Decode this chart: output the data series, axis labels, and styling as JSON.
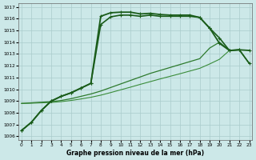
{
  "title": "Graphe pression niveau de la mer (hPa)",
  "bg_color": "#cce8e8",
  "grid_color": "#aacccc",
  "dark": "#1a5c1a",
  "mid": "#2d7a2d",
  "light": "#3a8c3a",
  "xmin": 0,
  "xmax": 23,
  "ymin": 1006,
  "ymax": 1017,
  "yticks": [
    1006,
    1007,
    1008,
    1009,
    1010,
    1011,
    1012,
    1013,
    1014,
    1015,
    1016,
    1017
  ],
  "xticks": [
    0,
    1,
    2,
    3,
    4,
    5,
    6,
    7,
    8,
    9,
    10,
    11,
    12,
    13,
    14,
    15,
    16,
    17,
    18,
    19,
    20,
    21,
    22,
    23
  ],
  "line1_x": [
    0,
    1,
    2,
    3,
    4,
    5,
    6,
    7,
    8,
    9,
    10,
    11,
    12,
    13,
    14,
    15,
    16,
    17,
    18,
    19,
    20,
    21,
    22,
    23
  ],
  "line1_y": [
    1006.5,
    1007.2,
    1008.2,
    1009.0,
    1009.4,
    1009.7,
    1010.1,
    1010.5,
    1016.2,
    1016.5,
    1016.55,
    1016.55,
    1016.4,
    1016.45,
    1016.35,
    1016.3,
    1016.3,
    1016.3,
    1016.1,
    1015.2,
    1013.9,
    1013.3,
    1013.35,
    1013.3
  ],
  "line2_x": [
    0,
    1,
    2,
    3,
    4,
    5,
    6,
    7,
    8,
    9,
    10,
    11,
    12,
    13,
    14,
    15,
    16,
    17,
    18,
    19,
    20,
    21,
    22,
    23
  ],
  "line2_y": [
    1006.5,
    1007.2,
    1008.2,
    1009.0,
    1009.4,
    1009.7,
    1010.1,
    1010.5,
    1015.5,
    1016.15,
    1016.3,
    1016.3,
    1016.2,
    1016.3,
    1016.2,
    1016.2,
    1016.2,
    1016.2,
    1016.1,
    1015.2,
    1014.35,
    1013.3,
    1013.35,
    1012.2
  ],
  "line3_x": [
    0,
    1,
    2,
    3,
    4,
    5,
    6,
    7,
    8,
    9,
    10,
    11,
    12,
    13,
    14,
    15,
    16,
    17,
    18,
    19,
    20,
    21,
    22,
    23
  ],
  "line3_y": [
    1008.8,
    1008.85,
    1008.9,
    1008.95,
    1009.05,
    1009.2,
    1009.4,
    1009.6,
    1009.85,
    1010.15,
    1010.45,
    1010.75,
    1011.05,
    1011.35,
    1011.6,
    1011.85,
    1012.1,
    1012.35,
    1012.6,
    1013.5,
    1014.0,
    1013.3,
    1013.35,
    1012.2
  ],
  "line4_x": [
    0,
    1,
    2,
    3,
    4,
    5,
    6,
    7,
    8,
    9,
    10,
    11,
    12,
    13,
    14,
    15,
    16,
    17,
    18,
    19,
    20,
    21,
    22,
    23
  ],
  "line4_y": [
    1008.8,
    1008.82,
    1008.85,
    1008.88,
    1008.95,
    1009.05,
    1009.18,
    1009.32,
    1009.5,
    1009.72,
    1009.95,
    1010.18,
    1010.42,
    1010.65,
    1010.88,
    1011.1,
    1011.32,
    1011.55,
    1011.78,
    1012.15,
    1012.55,
    1013.3,
    1013.35,
    1012.2
  ]
}
